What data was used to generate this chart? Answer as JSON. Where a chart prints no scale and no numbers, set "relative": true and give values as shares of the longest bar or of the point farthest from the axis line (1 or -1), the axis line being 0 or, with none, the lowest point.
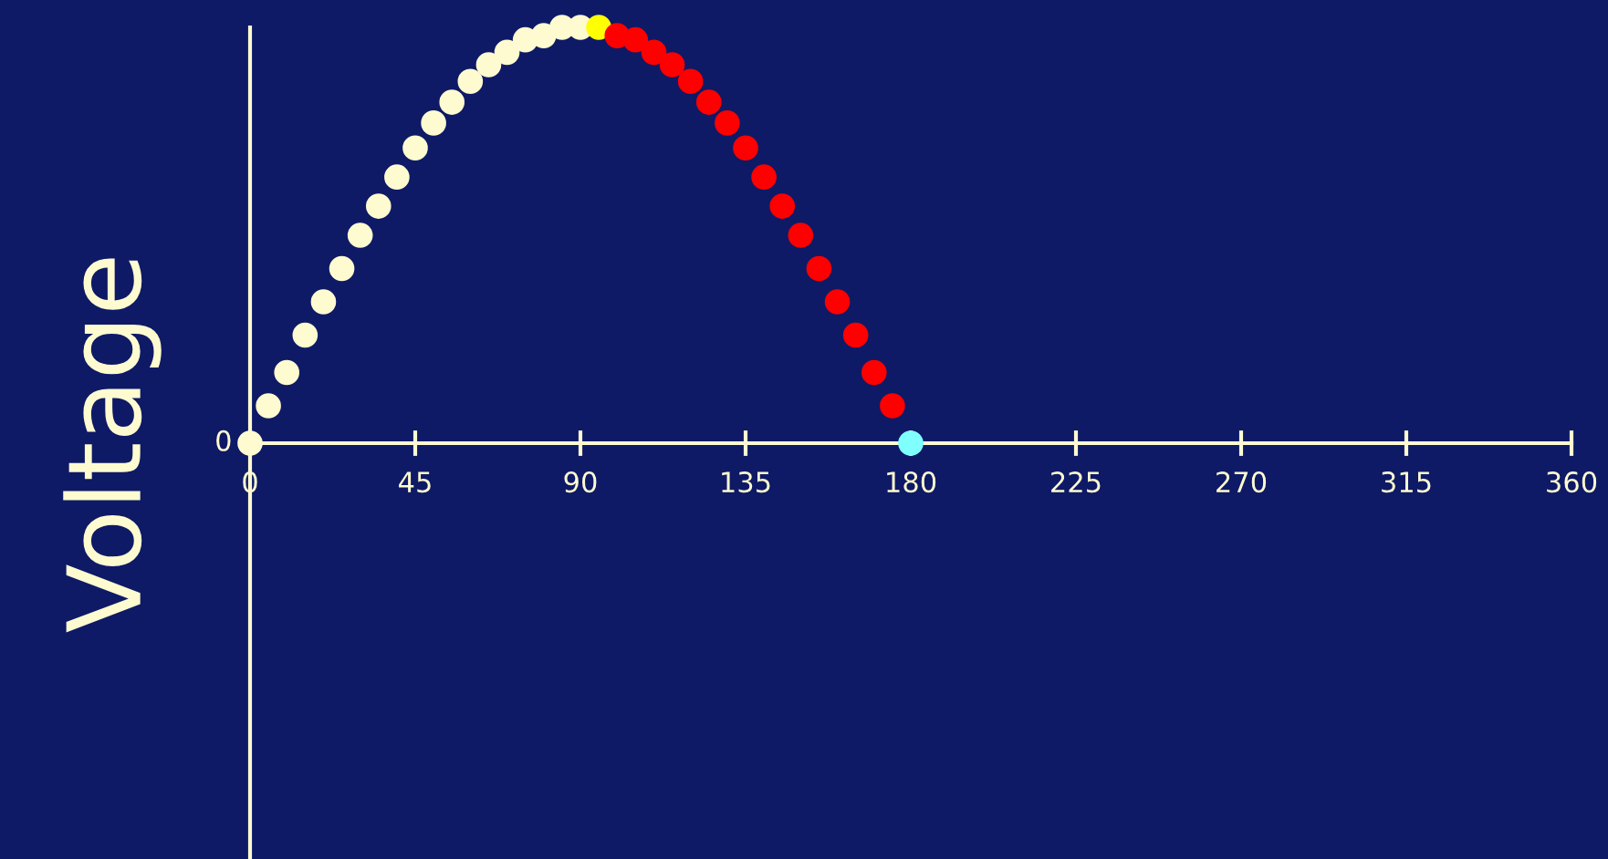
{
  "chart_data": {
    "type": "scatter",
    "ylabel": "Voltage",
    "relative": true,
    "xlim": [
      0,
      360
    ],
    "xticks": [
      0,
      45,
      90,
      135,
      180,
      225,
      270,
      315,
      360
    ],
    "grid": false,
    "legend": false,
    "marker": "circle",
    "annotations": [
      {
        "text": "0",
        "x": 0,
        "y": 0
      }
    ],
    "series": [
      {
        "color": "#fffbd0",
        "x": [
          0,
          5,
          10,
          15,
          20,
          25,
          30,
          35,
          40,
          45,
          50,
          55,
          60,
          65,
          70,
          75,
          80,
          85,
          90
        ],
        "values": [
          0,
          0.09,
          0.17,
          0.26,
          0.34,
          0.42,
          0.5,
          0.57,
          0.64,
          0.71,
          0.77,
          0.82,
          0.87,
          0.91,
          0.94,
          0.97,
          0.98,
          1.0,
          1.0
        ]
      },
      {
        "color": "#ffff00",
        "x": [
          95
        ],
        "values": [
          1.0
        ]
      },
      {
        "color": "#ff0000",
        "x": [
          100,
          105,
          110,
          115,
          120,
          125,
          130,
          135,
          140,
          145,
          150,
          155,
          160,
          165,
          170,
          175
        ],
        "values": [
          0.98,
          0.97,
          0.94,
          0.91,
          0.87,
          0.82,
          0.77,
          0.71,
          0.64,
          0.57,
          0.5,
          0.42,
          0.34,
          0.26,
          0.17,
          0.09
        ]
      },
      {
        "color": "#80ffff",
        "x": [
          180
        ],
        "values": [
          0
        ]
      }
    ]
  }
}
